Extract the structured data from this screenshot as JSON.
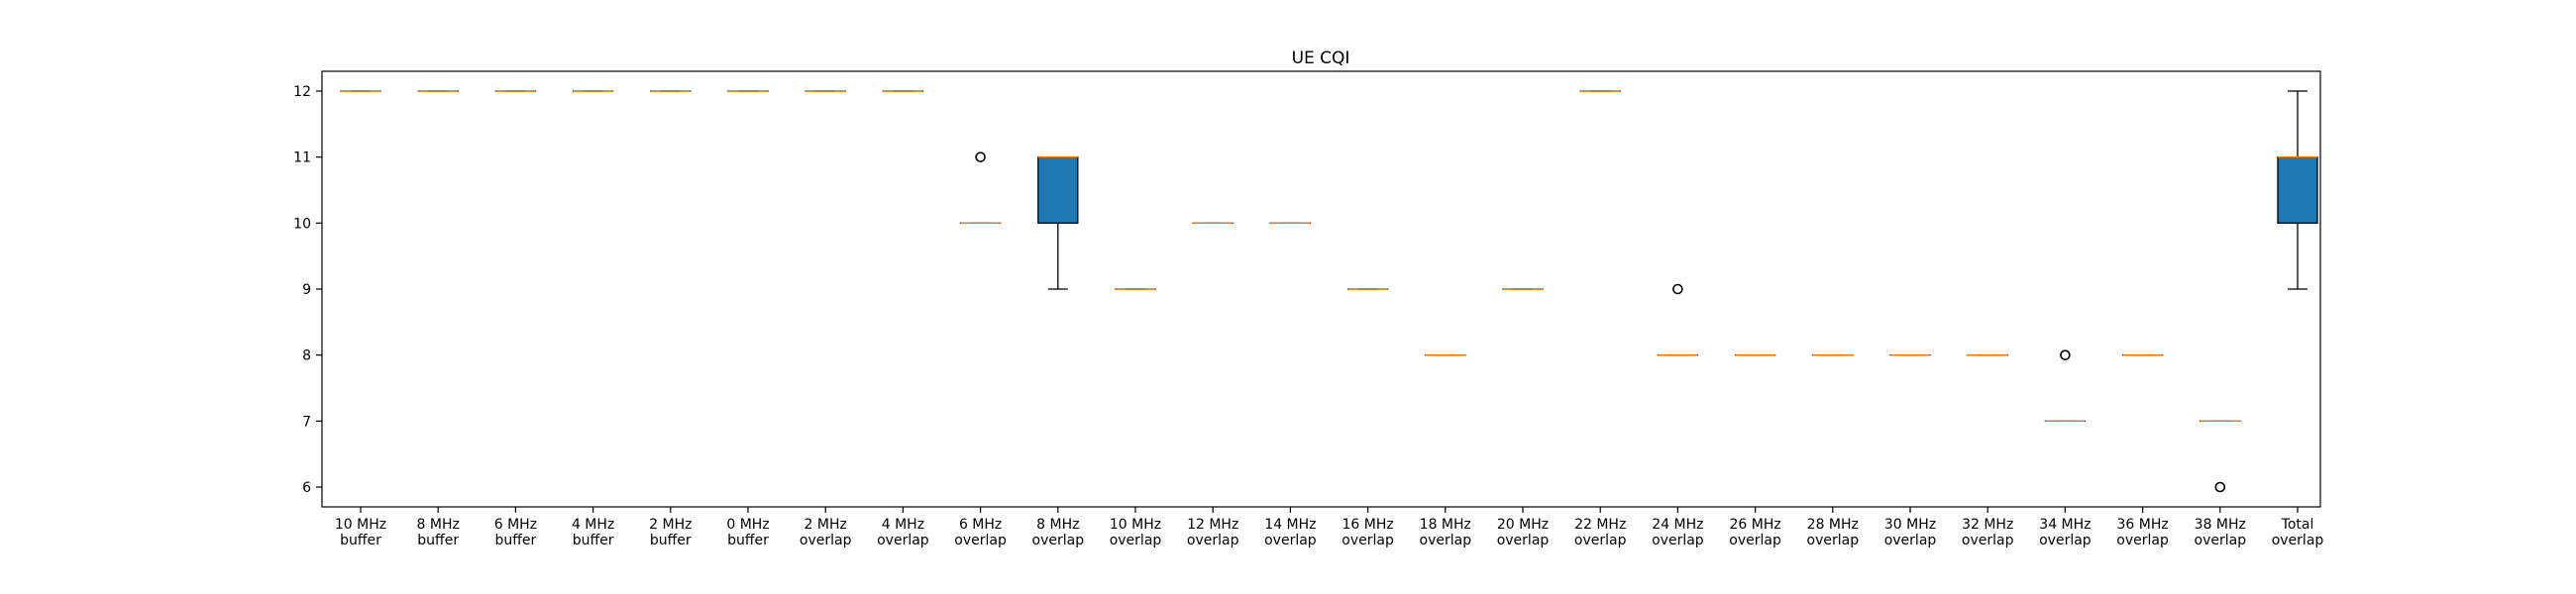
{
  "chart_data": {
    "type": "box",
    "title": "UE CQI",
    "xlabel": "",
    "ylabel": "",
    "ylim": [
      5.7,
      12.3
    ],
    "yticks": [
      6,
      7,
      8,
      9,
      10,
      11,
      12
    ],
    "grid": false,
    "categories": [
      [
        "10 MHz",
        "buffer"
      ],
      [
        "8 MHz",
        "buffer"
      ],
      [
        "6 MHz",
        "buffer"
      ],
      [
        "4 MHz",
        "buffer"
      ],
      [
        "2 MHz",
        "buffer"
      ],
      [
        "0 MHz",
        "buffer"
      ],
      [
        "2 MHz",
        "overlap"
      ],
      [
        "4 MHz",
        "overlap"
      ],
      [
        "6 MHz",
        "overlap"
      ],
      [
        "8 MHz",
        "overlap"
      ],
      [
        "10 MHz",
        "overlap"
      ],
      [
        "12 MHz",
        "overlap"
      ],
      [
        "14 MHz",
        "overlap"
      ],
      [
        "16 MHz",
        "overlap"
      ],
      [
        "18 MHz",
        "overlap"
      ],
      [
        "20 MHz",
        "overlap"
      ],
      [
        "22 MHz",
        "overlap"
      ],
      [
        "24 MHz",
        "overlap"
      ],
      [
        "26 MHz",
        "overlap"
      ],
      [
        "28 MHz",
        "overlap"
      ],
      [
        "30 MHz",
        "overlap"
      ],
      [
        "32 MHz",
        "overlap"
      ],
      [
        "34 MHz",
        "overlap"
      ],
      [
        "36 MHz",
        "overlap"
      ],
      [
        "38 MHz",
        "overlap"
      ],
      [
        "Total",
        "overlap"
      ]
    ],
    "boxes": [
      {
        "q1": 12,
        "median": 12,
        "q3": 12,
        "whislo": 12,
        "whishi": 12,
        "fliers": []
      },
      {
        "q1": 12,
        "median": 12,
        "q3": 12,
        "whislo": 12,
        "whishi": 12,
        "fliers": []
      },
      {
        "q1": 12,
        "median": 12,
        "q3": 12,
        "whislo": 12,
        "whishi": 12,
        "fliers": []
      },
      {
        "q1": 12,
        "median": 12,
        "q3": 12,
        "whislo": 12,
        "whishi": 12,
        "fliers": []
      },
      {
        "q1": 12,
        "median": 12,
        "q3": 12,
        "whislo": 12,
        "whishi": 12,
        "fliers": []
      },
      {
        "q1": 12,
        "median": 12,
        "q3": 12,
        "whislo": 12,
        "whishi": 12,
        "fliers": []
      },
      {
        "q1": 12,
        "median": 12,
        "q3": 12,
        "whislo": 12,
        "whishi": 12,
        "fliers": []
      },
      {
        "q1": 12,
        "median": 12,
        "q3": 12,
        "whislo": 12,
        "whishi": 12,
        "fliers": []
      },
      {
        "q1": 10,
        "median": 10,
        "q3": 10,
        "whislo": 10,
        "whishi": 10,
        "fliers": [
          11
        ]
      },
      {
        "q1": 10,
        "median": 11,
        "q3": 11,
        "whislo": 9,
        "whishi": 11,
        "fliers": []
      },
      {
        "q1": 9,
        "median": 9,
        "q3": 9,
        "whislo": 9,
        "whishi": 9,
        "fliers": []
      },
      {
        "q1": 10,
        "median": 10,
        "q3": 10,
        "whislo": 10,
        "whishi": 10,
        "fliers": []
      },
      {
        "q1": 10,
        "median": 10,
        "q3": 10,
        "whislo": 10,
        "whishi": 10,
        "fliers": []
      },
      {
        "q1": 9,
        "median": 9,
        "q3": 9,
        "whislo": 9,
        "whishi": 9,
        "fliers": []
      },
      {
        "q1": 8,
        "median": 8,
        "q3": 8,
        "whislo": 8,
        "whishi": 8,
        "fliers": []
      },
      {
        "q1": 9,
        "median": 9,
        "q3": 9,
        "whislo": 9,
        "whishi": 9,
        "fliers": []
      },
      {
        "q1": 12,
        "median": 12,
        "q3": 12,
        "whislo": 12,
        "whishi": 12,
        "fliers": []
      },
      {
        "q1": 8,
        "median": 8,
        "q3": 8,
        "whislo": 8,
        "whishi": 8,
        "fliers": [
          9
        ]
      },
      {
        "q1": 8,
        "median": 8,
        "q3": 8,
        "whislo": 8,
        "whishi": 8,
        "fliers": []
      },
      {
        "q1": 8,
        "median": 8,
        "q3": 8,
        "whislo": 8,
        "whishi": 8,
        "fliers": []
      },
      {
        "q1": 8,
        "median": 8,
        "q3": 8,
        "whislo": 8,
        "whishi": 8,
        "fliers": []
      },
      {
        "q1": 8,
        "median": 8,
        "q3": 8,
        "whislo": 8,
        "whishi": 8,
        "fliers": []
      },
      {
        "q1": 7,
        "median": 7,
        "q3": 7,
        "whislo": 7,
        "whishi": 7,
        "fliers": [
          8
        ]
      },
      {
        "q1": 8,
        "median": 8,
        "q3": 8,
        "whislo": 8,
        "whishi": 8,
        "fliers": []
      },
      {
        "q1": 7,
        "median": 7,
        "q3": 7,
        "whislo": 7,
        "whishi": 7,
        "fliers": [
          6
        ]
      },
      {
        "q1": 10,
        "median": 11,
        "q3": 11,
        "whislo": 9,
        "whishi": 12,
        "fliers": []
      }
    ],
    "colors": {
      "box_fill": "#1f77b4",
      "median": "#ff7f0e",
      "line": "#000000",
      "flier": "#000000"
    }
  }
}
